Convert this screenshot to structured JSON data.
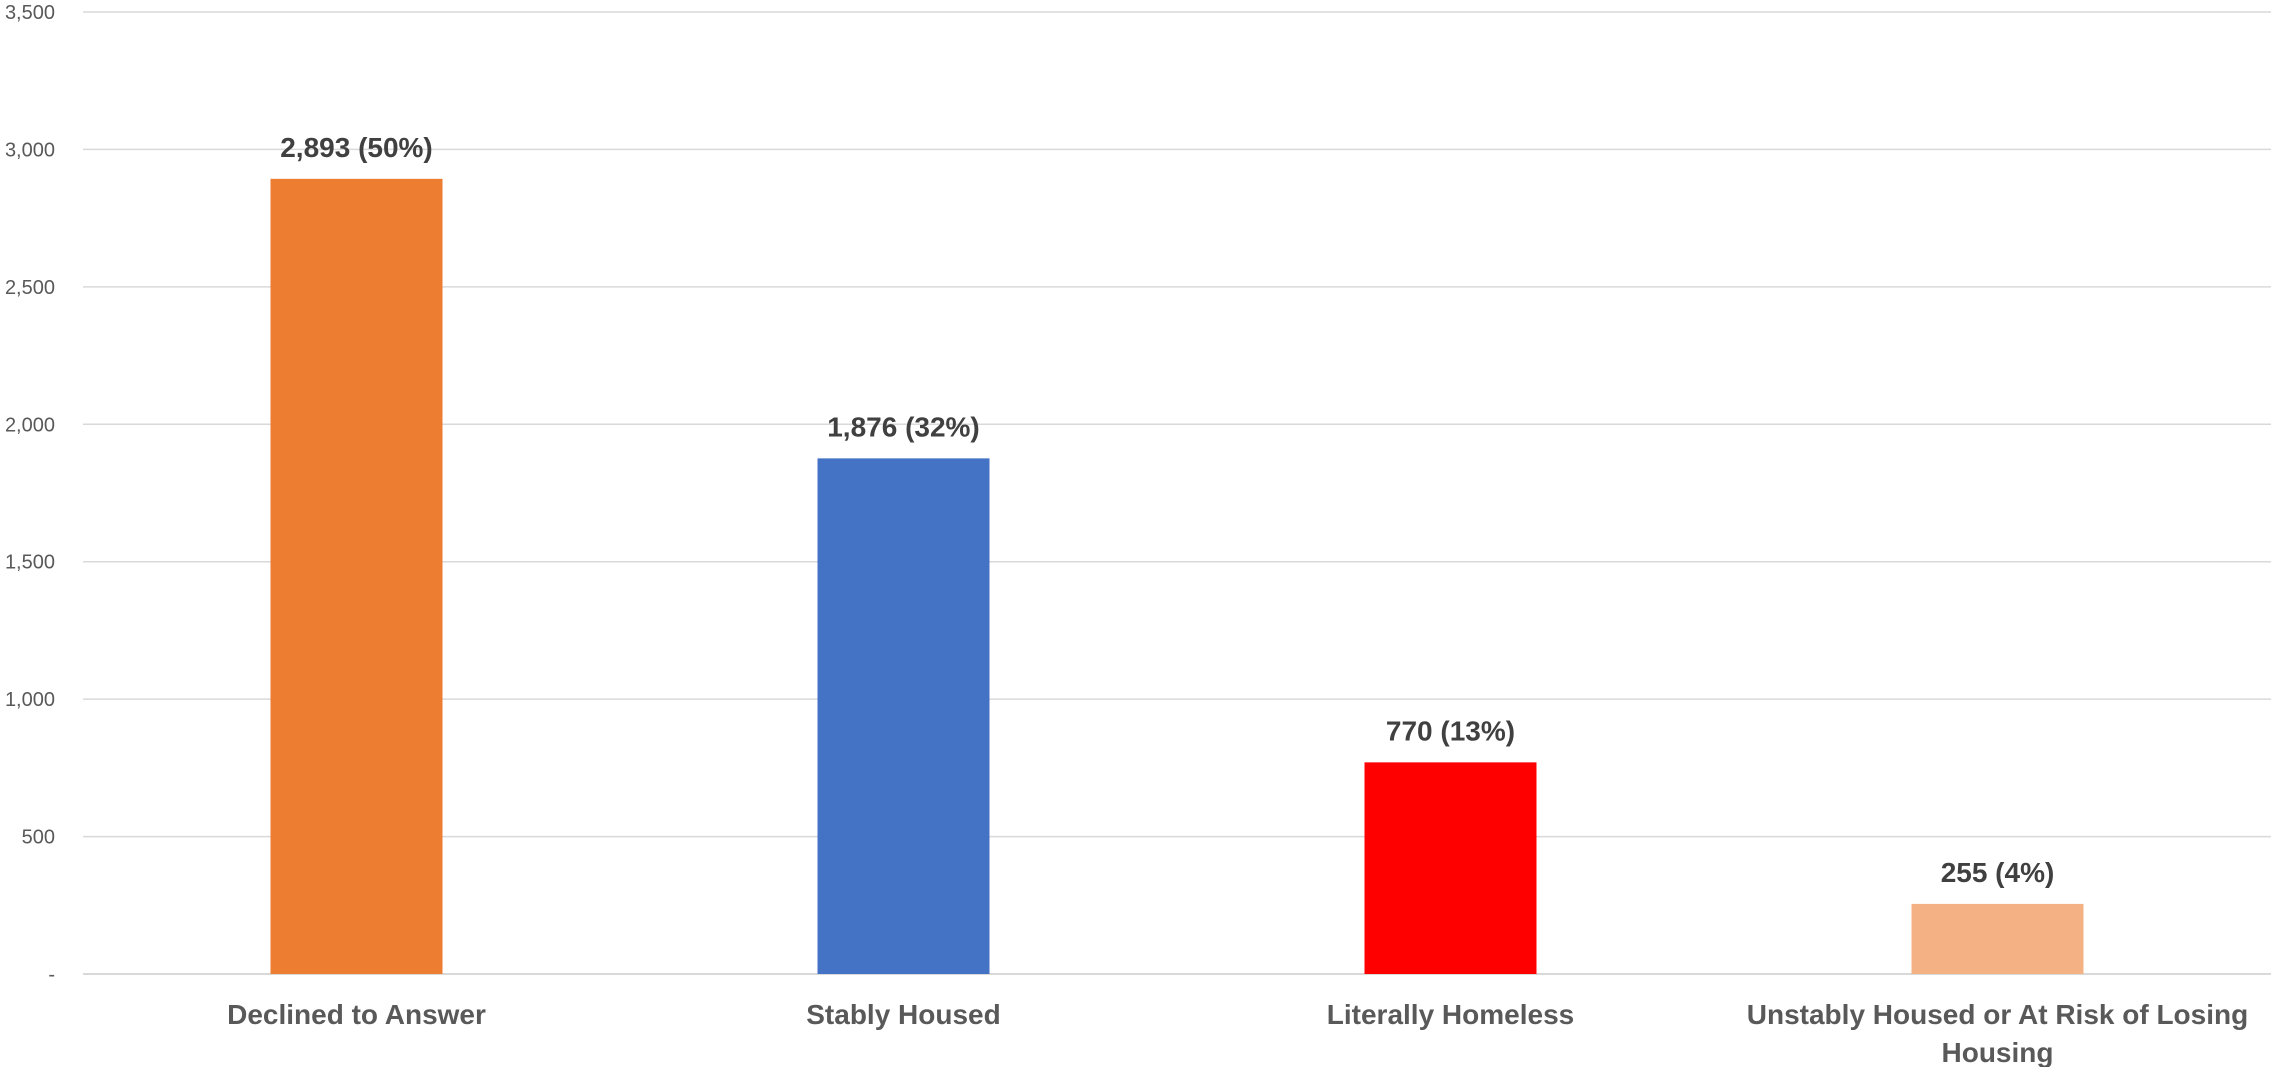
{
  "chart_data": {
    "type": "bar",
    "title": "",
    "xlabel": "",
    "ylabel": "",
    "ylim": [
      0,
      3500
    ],
    "yticks": [
      0,
      500,
      1000,
      1500,
      2000,
      2500,
      3000,
      3500
    ],
    "ytick_labels": [
      "-",
      "500",
      "1,000",
      "1,500",
      "2,000",
      "2,500",
      "3,000",
      "3,500"
    ],
    "grid": true,
    "legend": "none",
    "categories": [
      "Declined to Answer",
      "Stably Housed",
      "Literally Homeless",
      "Unstably Housed or At Risk of Losing Housing"
    ],
    "category_label_lines": [
      [
        "Declined to Answer"
      ],
      [
        "Stably Housed"
      ],
      [
        "Literally Homeless"
      ],
      [
        "Unstably Housed or At Risk of Losing",
        "Housing"
      ]
    ],
    "values": [
      2893,
      1876,
      770,
      255
    ],
    "data_labels": [
      "2,893 (50%)",
      "1,876 (32%)",
      "770 (13%)",
      "255 (4%)"
    ],
    "colors": [
      "#ED7D31",
      "#4472C4",
      "#FF0000",
      "#F4B183"
    ]
  }
}
